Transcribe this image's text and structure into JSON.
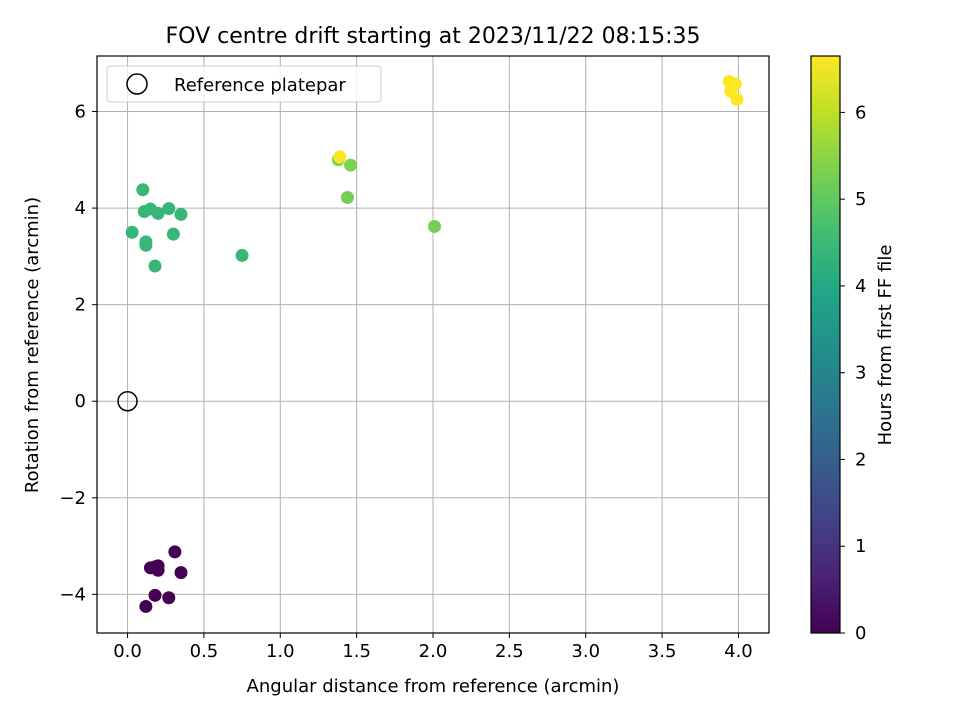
{
  "chart_data": {
    "type": "scatter",
    "title": "FOV centre drift starting at 2023/11/22 08:15:35",
    "xlabel": "Angular distance from reference (arcmin)",
    "ylabel": "Rotation from reference (arcmin)",
    "xlim": [
      -0.2,
      4.2
    ],
    "ylim": [
      -4.8,
      7.15
    ],
    "xticks": [
      0.0,
      0.5,
      1.0,
      1.5,
      2.0,
      2.5,
      3.0,
      3.5,
      4.0
    ],
    "xtick_labels": [
      "0.0",
      "0.5",
      "1.0",
      "1.5",
      "2.0",
      "2.5",
      "3.0",
      "3.5",
      "4.0"
    ],
    "yticks": [
      -4,
      -2,
      0,
      2,
      4,
      6
    ],
    "ytick_labels": [
      "−4",
      "−2",
      "0",
      "2",
      "4",
      "6"
    ],
    "grid": true,
    "legend": {
      "placement": "top-left",
      "entries": [
        "Reference platepar"
      ]
    },
    "reference_point": {
      "x": 0.0,
      "y": 0.0
    },
    "colorbar": {
      "label": "Hours from first FF file",
      "colormap": "viridis",
      "range": [
        0,
        6.65
      ],
      "ticks": [
        0,
        1,
        2,
        3,
        4,
        5,
        6
      ],
      "tick_labels": [
        "0",
        "1",
        "2",
        "3",
        "4",
        "5",
        "6"
      ]
    },
    "points": [
      {
        "x": 0.12,
        "y": -4.25,
        "hours": 0.0
      },
      {
        "x": 0.18,
        "y": -4.02,
        "hours": 0.0
      },
      {
        "x": 0.27,
        "y": -4.07,
        "hours": 0.0
      },
      {
        "x": 0.15,
        "y": -3.45,
        "hours": 0.0
      },
      {
        "x": 0.18,
        "y": -3.43,
        "hours": 0.0
      },
      {
        "x": 0.2,
        "y": -3.41,
        "hours": 0.0
      },
      {
        "x": 0.2,
        "y": -3.5,
        "hours": 0.0
      },
      {
        "x": 0.31,
        "y": -3.12,
        "hours": 0.0
      },
      {
        "x": 0.35,
        "y": -3.55,
        "hours": 0.0
      },
      {
        "x": 0.03,
        "y": 3.5,
        "hours": 4.4
      },
      {
        "x": 0.1,
        "y": 4.38,
        "hours": 4.4
      },
      {
        "x": 0.11,
        "y": 3.93,
        "hours": 4.4
      },
      {
        "x": 0.12,
        "y": 3.3,
        "hours": 4.4
      },
      {
        "x": 0.12,
        "y": 3.23,
        "hours": 4.4
      },
      {
        "x": 0.15,
        "y": 3.98,
        "hours": 4.4
      },
      {
        "x": 0.18,
        "y": 2.8,
        "hours": 4.4
      },
      {
        "x": 0.2,
        "y": 3.89,
        "hours": 4.4
      },
      {
        "x": 0.27,
        "y": 3.99,
        "hours": 4.4
      },
      {
        "x": 0.3,
        "y": 3.46,
        "hours": 4.4
      },
      {
        "x": 0.35,
        "y": 3.87,
        "hours": 4.4
      },
      {
        "x": 0.75,
        "y": 3.02,
        "hours": 4.4
      },
      {
        "x": 1.44,
        "y": 4.22,
        "hours": 5.25
      },
      {
        "x": 1.46,
        "y": 4.89,
        "hours": 5.35
      },
      {
        "x": 1.38,
        "y": 5.0,
        "hours": 5.4
      },
      {
        "x": 2.01,
        "y": 3.62,
        "hours": 5.25
      },
      {
        "x": 1.39,
        "y": 5.06,
        "hours": 6.6
      },
      {
        "x": 3.94,
        "y": 6.62,
        "hours": 6.65
      },
      {
        "x": 3.98,
        "y": 6.57,
        "hours": 6.65
      },
      {
        "x": 3.95,
        "y": 6.42,
        "hours": 6.65
      },
      {
        "x": 3.99,
        "y": 6.25,
        "hours": 6.65
      }
    ]
  }
}
